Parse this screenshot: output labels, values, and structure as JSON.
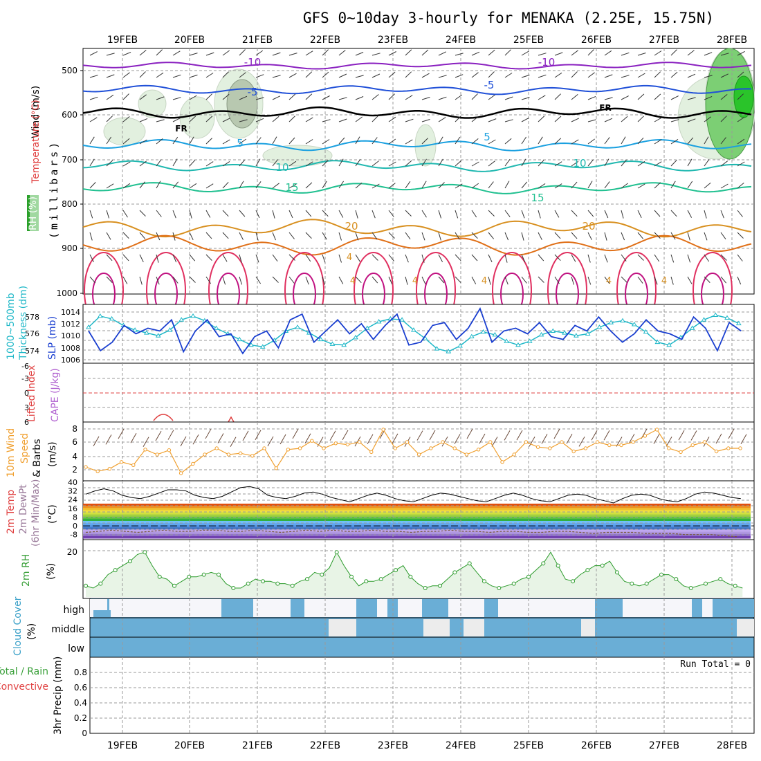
{
  "title": "GFS 0~10day 3-hourly for MENAKA (2.25E, 15.75N)",
  "colors": {
    "grid": "#9a9a9a",
    "frame": "#000000",
    "thickness": "#20b8c8",
    "slp": "#1a3fd0",
    "wind_line": "#f0a030",
    "rh2m": "#2a9a2a",
    "rh_fill": "#e8f4e6",
    "dewpoint": "#9a7a9a",
    "temp_fill_warm": "#d84010",
    "cloud": "#6aaed6",
    "cloud_clear": "#f6f6fa",
    "label_red": "#e04040",
    "label_purple": "#b060d0",
    "label_green": "#3aa03a",
    "label_orange": "#f0a030",
    "label_blue": "#3aa0c8"
  },
  "dates": [
    "19FEB",
    "20FEB",
    "21FEB",
    "22FEB",
    "23FEB",
    "24FEB",
    "25FEB",
    "26FEB",
    "27FEB",
    "28FEB"
  ],
  "panels": {
    "upper": {
      "ylabel_wind": "Wind (m/s)",
      "ylabel_temp": "Temperature (°C)",
      "ylabel_rh": "RH (%)",
      "ylabel_mb": "(millibars)",
      "levels": [
        "500",
        "600",
        "700",
        "800",
        "900",
        "1000"
      ],
      "contour_labels": [
        "-10",
        "-10",
        "-5",
        "-5",
        "FR",
        "FR",
        "5",
        "5",
        "10",
        "10",
        "15",
        "15",
        "20",
        "20"
      ],
      "marker_labels": [
        "4",
        "4",
        "4",
        "4",
        "4",
        "4"
      ]
    },
    "pressure": {
      "ylabel_thick": "Thickness (dm)",
      "ylabel_thick2": "1000~500mb",
      "ylabel_slp": "SLP (mb)",
      "thick_ticks": [
        "578",
        "576",
        "574"
      ],
      "slp_ticks": [
        "1014",
        "1012",
        "1010",
        "1008",
        "1006"
      ]
    },
    "cape": {
      "ylabel_li": "Lifted Index",
      "ylabel_cape": "CAPE (J/kg)",
      "ticks": [
        "-6",
        "-3",
        "0",
        "3",
        "6"
      ]
    },
    "wind10": {
      "ylabel": "10m Wind",
      "ylabel2": "Speed",
      "ylabel3": "& Barbs",
      "ylabel_unit": "(m/s)",
      "ticks": [
        "8",
        "6",
        "4",
        "2"
      ]
    },
    "temp": {
      "ylabel": "2m Temp",
      "ylabel2": "2m DewPt",
      "ylabel3": "(6hr Min/Max)",
      "ylabel_unit": "(°C)",
      "ticks": [
        "40",
        "32",
        "24",
        "16",
        "8",
        "0",
        "-8"
      ]
    },
    "rh2m": {
      "ylabel": "2m RH",
      "ylabel_unit": "(%)",
      "ticks": [
        "20"
      ]
    },
    "cloud": {
      "ylabel": "Cloud Cover",
      "ylabel_unit": "(%)",
      "layers": [
        "high",
        "middle",
        "low"
      ]
    },
    "precip": {
      "ylabel_total": "Total / Rain",
      "ylabel_conv": "Convective",
      "ylabel_unit": "3hr Precip (mm)",
      "ticks": [
        "0.8",
        "0.6",
        "0.4",
        "0.2",
        "0"
      ],
      "run_total": "Run Total = 0"
    }
  },
  "chart_data": [
    {
      "type": "line",
      "title": "1000~500mb Thickness (dm) / SLP (mb)",
      "x_unit": "3-hourly steps starting 18FEB 12Z",
      "series": [
        {
          "name": "Thickness (dm)",
          "ylim": [
            573,
            579
          ],
          "values": [
            576.7,
            577.9,
            577.6,
            576.9,
            576.4,
            576.1,
            575.8,
            576.4,
            577.5,
            577.9,
            577.4,
            576.6,
            576.0,
            575.4,
            574.8,
            574.6,
            575.3,
            576.3,
            576.7,
            576.1,
            575.4,
            574.9,
            574.8,
            575.6,
            576.6,
            577.3,
            577.6,
            577.5,
            576.4,
            575.5,
            574.4,
            574.1,
            574.7,
            575.7,
            576.2,
            575.9,
            575.2,
            574.8,
            575.2,
            575.9,
            576.3,
            576.1,
            575.8,
            576.0,
            576.7,
            577.2,
            577.4,
            577.0,
            576.2,
            575.1,
            574.8,
            575.6,
            576.6,
            577.5,
            578.0,
            577.7,
            577.1
          ]
        },
        {
          "name": "SLP (mb)",
          "ylim": [
            1005,
            1015
          ],
          "values": [
            1010.5,
            1007.0,
            1008.5,
            1011.5,
            1010.0,
            1011.0,
            1010.5,
            1012.5,
            1006.8,
            1010.5,
            1012.5,
            1009.5,
            1010.0,
            1006.5,
            1009.5,
            1010.5,
            1007.5,
            1012.5,
            1013.5,
            1008.5,
            1010.5,
            1012.5,
            1010.0,
            1011.8,
            1009.0,
            1011.5,
            1013.5,
            1008.0,
            1008.5,
            1011.5,
            1012.0,
            1009.0,
            1011.0,
            1014.5,
            1008.5,
            1010.5,
            1011.0,
            1010.0,
            1012.0,
            1009.5,
            1009.0,
            1011.5,
            1010.5,
            1013.0,
            1010.5,
            1008.5,
            1010.0,
            1012.5,
            1010.5,
            1010.0,
            1009.0,
            1013.0,
            1011.0,
            1007.0,
            1012.0,
            1010.5
          ]
        }
      ]
    },
    {
      "type": "line",
      "title": "10m Wind Speed (m/s)",
      "ylim": [
        0,
        9
      ],
      "values": [
        2.0,
        1.3,
        1.7,
        2.8,
        2.3,
        4.8,
        4.0,
        4.7,
        1.0,
        2.5,
        4.0,
        5.0,
        4.0,
        4.2,
        3.8,
        5.0,
        1.8,
        4.8,
        5.0,
        6.2,
        5.0,
        5.8,
        5.6,
        6.0,
        4.4,
        8.0,
        5.0,
        6.0,
        4.0,
        5.0,
        6.0,
        5.0,
        4.0,
        4.8,
        6.0,
        2.8,
        4.0,
        6.0,
        5.2,
        5.0,
        6.0,
        4.5,
        5.0,
        6.0,
        5.5,
        5.5,
        6.0,
        7.0,
        8.0,
        5.0,
        4.4,
        5.5,
        6.0,
        4.5,
        5.0,
        5.0
      ]
    },
    {
      "type": "area",
      "title": "2m Temp / 2m DewPt (°C)",
      "ylim": [
        -12,
        40
      ],
      "series": [
        {
          "name": "2m Temp",
          "values": [
            29,
            32,
            34,
            32,
            28,
            26,
            25,
            27,
            30,
            33,
            33,
            32,
            28,
            26,
            25,
            27,
            31,
            35,
            36,
            34,
            28,
            26,
            25,
            27,
            30,
            31,
            29,
            26,
            24,
            22,
            25,
            28,
            30,
            28,
            25,
            23,
            22,
            25,
            28,
            30,
            29,
            27,
            25,
            23,
            22,
            25,
            28,
            30,
            28,
            25,
            23,
            22,
            25,
            28,
            29,
            28,
            25,
            23,
            21,
            25,
            28,
            29,
            28,
            25,
            23,
            22,
            25,
            29,
            31,
            30,
            28,
            26,
            25
          ]
        },
        {
          "name": "2m DewPt",
          "values": [
            -6,
            -5,
            -4,
            -5,
            -6,
            -5,
            -4,
            -5,
            -5,
            -4,
            -4,
            -5,
            -5,
            -4,
            -5,
            -6,
            -5,
            -4,
            -5,
            -4,
            -5,
            -5,
            -4,
            -5,
            -5,
            -6,
            -5,
            -5,
            -4,
            -5,
            -5,
            -6,
            -5,
            -5,
            -6,
            -6,
            -5,
            -5,
            -6,
            -7,
            -6,
            -6,
            -6,
            -7,
            -7,
            -7,
            -8,
            -8,
            -8,
            -9,
            -10
          ]
        }
      ]
    },
    {
      "type": "line",
      "title": "2m RH (%)",
      "ylim": [
        0,
        25
      ],
      "values": [
        5,
        4,
        6,
        10,
        12,
        14,
        16,
        19,
        20,
        14,
        9,
        8,
        5,
        7,
        9,
        9,
        10,
        11,
        10,
        6,
        4,
        4,
        6,
        8,
        7,
        7,
        6,
        6,
        5,
        7,
        8,
        11,
        10,
        13,
        20,
        14,
        9,
        5,
        7,
        7,
        8,
        10,
        12,
        14,
        9,
        6,
        4,
        5,
        5,
        8,
        11,
        13,
        15,
        11,
        7,
        5,
        4,
        5,
        6,
        8,
        9,
        12,
        15,
        20,
        14,
        8,
        7,
        10,
        12,
        14,
        14,
        16,
        11,
        7,
        6,
        5,
        6,
        8,
        10,
        10,
        8,
        5,
        4,
        5,
        6,
        7,
        8,
        6,
        5,
        4
      ]
    },
    {
      "type": "table",
      "title": "Cloud Cover (%)",
      "layers": [
        "high",
        "middle",
        "low"
      ]
    },
    {
      "type": "bar",
      "title": "3hr Precip (mm)",
      "ylim": [
        0,
        1
      ],
      "values": []
    }
  ]
}
